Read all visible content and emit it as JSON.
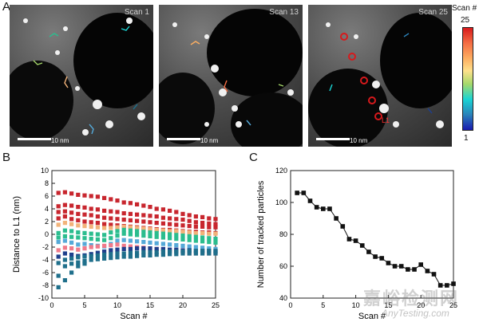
{
  "panel_a": {
    "letter": "A",
    "images": [
      {
        "label": "Scan 1",
        "scale": "10 nm"
      },
      {
        "label": "Scan 13",
        "scale": "10 nm"
      },
      {
        "label": "Scan 25",
        "scale": "10 nm"
      }
    ],
    "marker": "L1",
    "colorbar": {
      "title": "Scan #",
      "max": "25",
      "min": "1"
    }
  },
  "panel_b": {
    "letter": "B"
  },
  "panel_c": {
    "letter": "C"
  },
  "watermark": {
    "line1": "嘉峪检测网",
    "line2": "AnyTesting.com"
  },
  "colors": {
    "red": "#c8262e",
    "pink": "#f07a8a",
    "green": "#2bbd8e",
    "blue": "#1f6f8b",
    "navy": "#1f3f8c",
    "lightblue": "#55a9d8",
    "tan": "#f2b37a"
  },
  "chart_data": [
    {
      "type": "scatter",
      "xlabel": "Scan #",
      "ylabel": "Distance to L1 (nm)",
      "xlim": [
        0,
        25
      ],
      "ylim": [
        -10,
        10
      ],
      "xticks": [
        0,
        5,
        10,
        15,
        20,
        25
      ],
      "yticks": [
        -10,
        -8,
        -6,
        -4,
        -2,
        0,
        2,
        4,
        6,
        8,
        10
      ],
      "marker": "square",
      "x": [
        1,
        2,
        3,
        4,
        5,
        6,
        7,
        8,
        9,
        10,
        11,
        12,
        13,
        14,
        15,
        16,
        17,
        18,
        19,
        20,
        21,
        22,
        23,
        24,
        25
      ],
      "series": [
        {
          "color": "#c8262e",
          "values": [
            6.5,
            6.6,
            6.4,
            6.2,
            6.1,
            6.0,
            5.9,
            5.7,
            5.5,
            5.3,
            5.0,
            4.9,
            4.7,
            4.5,
            4.3,
            4.0,
            3.9,
            3.7,
            3.5,
            3.2,
            3.0,
            2.8,
            2.7,
            2.5,
            2.4
          ]
        },
        {
          "color": "#c8262e",
          "values": [
            4.4,
            4.6,
            4.5,
            4.3,
            4.2,
            4.0,
            3.9,
            3.7,
            3.6,
            3.5,
            3.3,
            3.2,
            3.1,
            3.0,
            2.9,
            2.8,
            2.6,
            2.5,
            2.4,
            2.3,
            2.1,
            1.9,
            1.8,
            1.7,
            1.6
          ]
        },
        {
          "color": "#c8262e",
          "values": [
            3.5,
            3.6,
            3.4,
            3.2,
            3.1,
            3.0,
            2.8,
            2.6,
            2.5,
            2.4,
            2.3,
            2.2,
            2.1,
            2.0,
            1.9,
            1.8,
            1.7,
            1.6,
            1.5,
            1.4,
            1.3,
            1.2,
            1.2,
            1.1,
            1.1
          ]
        },
        {
          "color": "#c8262e",
          "values": [
            2.5,
            2.8,
            2.4,
            2.2,
            2.0,
            1.9,
            1.8,
            1.6,
            1.5,
            1.4,
            1.3,
            1.2,
            1.1,
            1.0,
            0.9,
            0.8,
            0.7,
            0.7,
            0.6,
            0.5,
            0.4,
            0.4,
            0.3,
            0.3,
            0.2
          ]
        },
        {
          "color": "#f2b37a",
          "values": [
            1.5,
            1.8,
            1.6,
            1.4,
            1.3,
            1.2,
            1.1,
            1.0,
            1.0,
            1.1,
            1.2,
            1.1,
            1.0,
            0.9,
            0.8,
            0.7,
            0.6,
            0.5,
            0.5,
            0.4,
            0.3,
            0.2,
            0.2,
            0.1,
            0.1
          ]
        },
        {
          "color": "#2bbd8e",
          "values": [
            0.2,
            0.6,
            0.5,
            0.3,
            0.2,
            0.1,
            0.0,
            -0.1,
            0.3,
            0.5,
            0.7,
            0.6,
            0.5,
            0.4,
            0.3,
            0.2,
            0.1,
            0.0,
            -0.1,
            -0.2,
            -0.3,
            -0.4,
            -0.5,
            -0.6,
            -0.7
          ]
        },
        {
          "color": "#2bbd8e",
          "values": [
            -0.5,
            -0.3,
            -0.4,
            -0.5,
            -0.6,
            -0.7,
            -0.8,
            -0.9,
            -0.6,
            -0.2,
            0.1,
            0.0,
            -0.1,
            -0.2,
            -0.3,
            -0.4,
            -0.5,
            -0.6,
            -0.7,
            -0.8,
            -0.9,
            -1.0,
            -1.1,
            -1.2,
            -1.3
          ]
        },
        {
          "color": "#55a9d8",
          "values": [
            -1.2,
            -1.0,
            -1.3,
            -1.6,
            -1.5,
            -1.7,
            -1.8,
            -1.9,
            -1.5,
            -1.0,
            -0.9,
            -1.0,
            -1.1,
            -1.2,
            -1.3,
            -1.4,
            -1.5,
            -1.6,
            -1.7,
            -1.8,
            -1.9,
            -2.0,
            -2.1,
            -2.2,
            -2.3
          ]
        },
        {
          "color": "#f07a8a",
          "values": [
            -2.5,
            -2.1,
            -2.2,
            -2.4,
            -2.2,
            -2.0,
            -1.9,
            -1.8,
            -1.7,
            -1.6,
            -1.8,
            -1.9,
            -2.0,
            -2.1,
            -2.2,
            -2.3,
            -2.4,
            -2.5,
            -2.6,
            -2.7,
            -3.0,
            -3.0,
            -2.9,
            -3.0,
            -3.0
          ]
        },
        {
          "color": "#1f3f8c",
          "values": [
            -3.5,
            -3.0,
            -3.2,
            -3.4,
            -3.3,
            -3.1,
            -2.9,
            -2.7,
            -2.5,
            -2.4,
            -2.3,
            -2.3,
            -2.2,
            -2.2,
            -2.2,
            -2.3,
            -2.3,
            -2.4,
            -2.4,
            -2.5,
            -2.5,
            -2.6,
            -2.6,
            -2.6,
            -2.7
          ]
        },
        {
          "color": "#1f6f8b",
          "values": [
            -4.5,
            -4.0,
            -3.8,
            -3.6,
            -3.5,
            -3.4,
            -3.3,
            -3.2,
            -3.1,
            -3.0,
            -3.0,
            -2.9,
            -2.9,
            -2.8,
            -2.8,
            -2.8,
            -2.7,
            -2.7,
            -2.7,
            -2.7,
            -2.6,
            -2.6,
            -2.6,
            -2.6,
            -2.6
          ]
        },
        {
          "color": "#1f6f8b",
          "values": [
            -6.5,
            -5.0,
            -4.6,
            -4.4,
            -4.2,
            -4.0,
            -3.9,
            -3.8,
            -3.7,
            -3.6,
            -3.5,
            -3.5,
            -3.4,
            -3.3,
            -3.3,
            -3.2,
            -3.2,
            -3.1,
            -3.1,
            -3.0,
            -3.0,
            -3.0,
            -3.0,
            -3.0,
            -3.0
          ]
        },
        {
          "color": "#1f6f8b",
          "values": [
            -8.3,
            -7.2,
            -6.0,
            -5.0,
            -4.6,
            null,
            null,
            null,
            null,
            null,
            null,
            null,
            null,
            null,
            null,
            null,
            null,
            null,
            null,
            null,
            null,
            null,
            null,
            null,
            null
          ]
        }
      ]
    },
    {
      "type": "line",
      "xlabel": "Scan #",
      "ylabel": "Number of tracked particles",
      "xlim": [
        0,
        25
      ],
      "ylim": [
        40,
        120
      ],
      "xticks": [
        0,
        5,
        10,
        15,
        20,
        25
      ],
      "yticks": [
        40,
        60,
        80,
        100,
        120
      ],
      "marker": "square",
      "x": [
        1,
        2,
        3,
        4,
        5,
        6,
        7,
        8,
        9,
        10,
        11,
        12,
        13,
        14,
        15,
        16,
        17,
        18,
        19,
        20,
        21,
        22,
        23,
        24,
        25
      ],
      "values": [
        106,
        106,
        101,
        97,
        96,
        96,
        90,
        85,
        77,
        76,
        73,
        69,
        66,
        65,
        62,
        60,
        60,
        58,
        58,
        61,
        57,
        55,
        48,
        48,
        49
      ]
    }
  ]
}
